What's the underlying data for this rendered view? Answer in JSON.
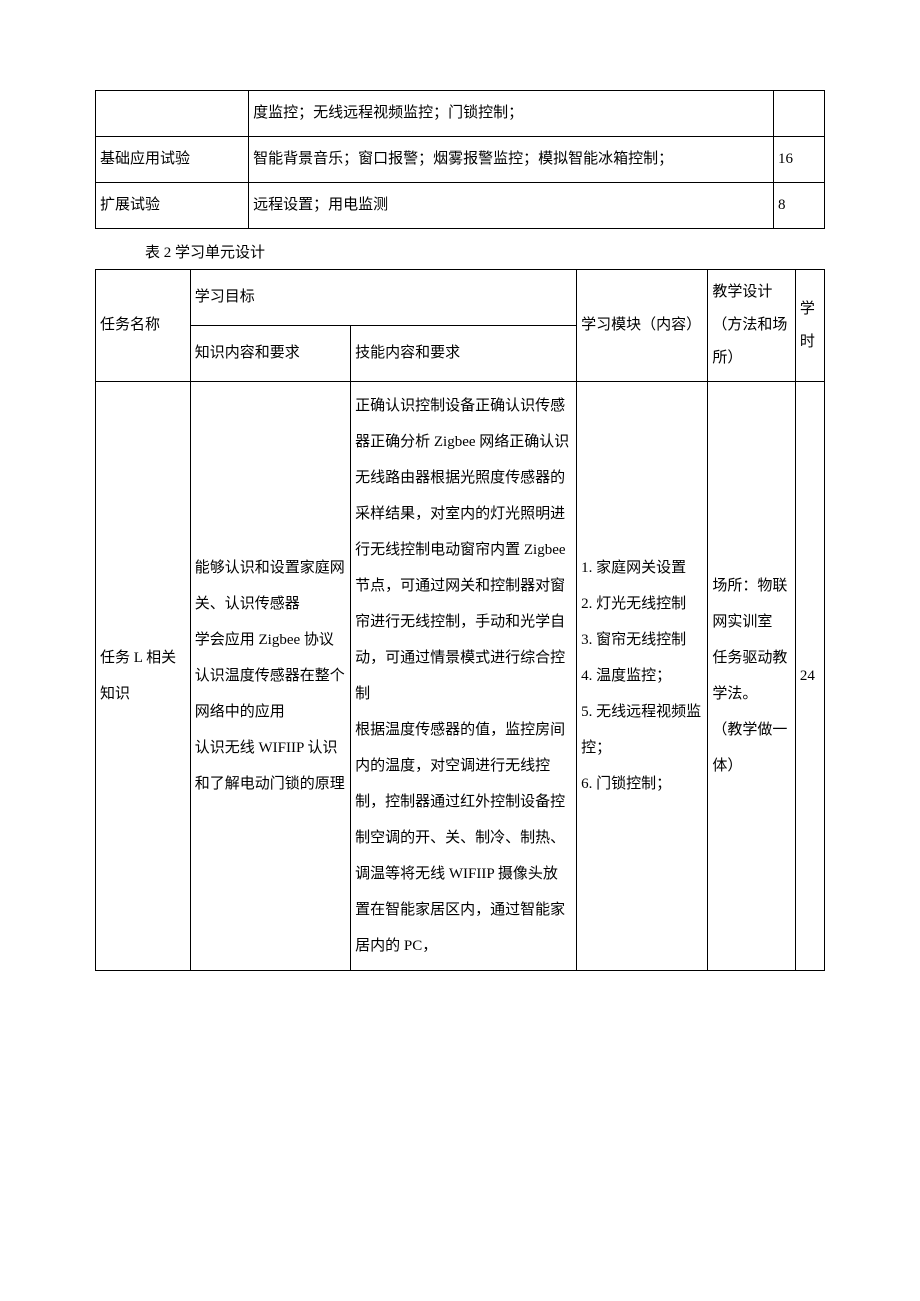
{
  "table1": {
    "rows": [
      {
        "c1": "",
        "c2": "度监控；无线远程视频监控；门锁控制；",
        "c3": ""
      },
      {
        "c1": "基础应用试验",
        "c2": "智能背景音乐；窗口报警；烟雾报警监控；模拟智能冰箱控制；",
        "c3": "16"
      },
      {
        "c1": "扩展试验",
        "c2": "远程设置；用电监测",
        "c3": "8"
      }
    ]
  },
  "caption2": "表 2 学习单元设计",
  "table2": {
    "header": {
      "task_name": "任务名称",
      "learning_goal": "学习目标",
      "knowledge": "知识内容和要求",
      "skill": "技能内容和要求",
      "module": "学习模块（内容）",
      "design": "教学设计（方法和场所）",
      "hours": "学时"
    },
    "row1": {
      "task_name": "任务 L 相关知识",
      "knowledge": "能够认识和设置家庭网关、认识传感器\n学会应用 Zigbee 协议认识温度传感器在整个网络中的应用\n认识无线 WIFIIP 认识和了解电动门锁的原理",
      "skill": "正确认识控制设备正确认识传感器正确分析 Zigbee 网络正确认识无线路由器根据光照度传感器的采样结果，对室内的灯光照明进行无线控制电动窗帘内置 Zigbee 节点，可通过网关和控制器对窗帘进行无线控制，手动和光学自动，可通过情景模式进行综合控制\n根据温度传感器的值，监控房间内的温度，对空调进行无线控制，控制器通过红外控制设备控制空调的开、关、制冷、制热、调温等将无线 WIFIIP 摄像头放置在智能家居区内，通过智能家居内的 PC，",
      "module": "1. 家庭网关设置\n2. 灯光无线控制\n3. 窗帘无线控制\n4. 温度监控；\n5. 无线远程视频监控；\n6. 门锁控制；",
      "design": "场所：物联网实训室\n任务驱动教学法。\n（教学做一体）",
      "hours": "24"
    }
  }
}
